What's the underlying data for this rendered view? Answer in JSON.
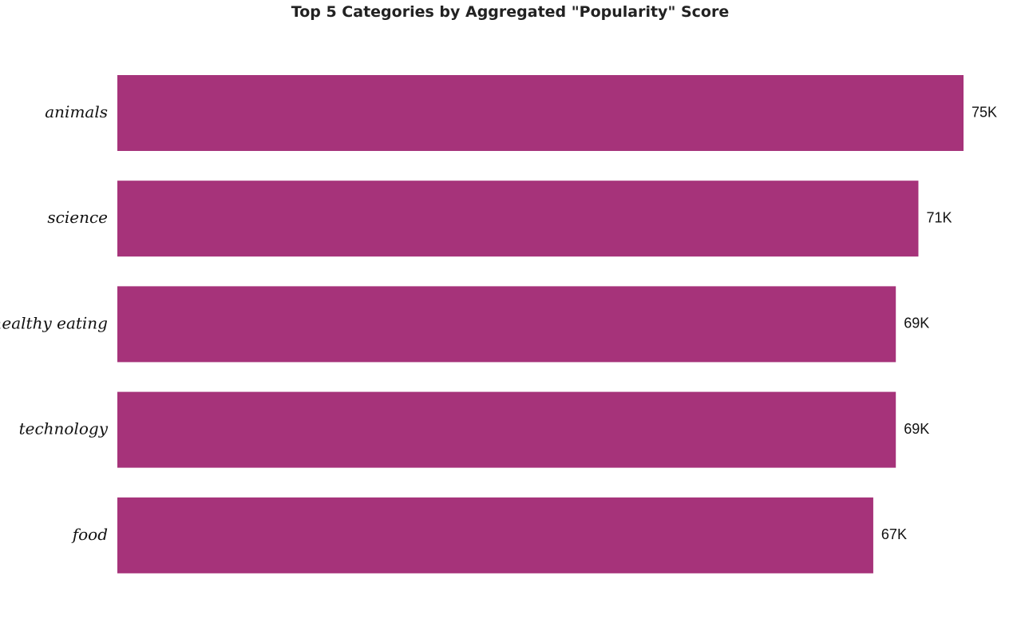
{
  "chart_data": {
    "type": "bar",
    "orientation": "horizontal",
    "title": "Top 5 Categories by Aggregated \"Popularity\" Score",
    "categories": [
      "animals",
      "science",
      "healthy eating",
      "technology",
      "food"
    ],
    "values": [
      75000,
      71000,
      69000,
      69000,
      67000
    ],
    "data_labels": [
      "75K",
      "71K",
      "69K",
      "69K",
      "67K"
    ],
    "bar_color": "#a6337a",
    "xlim": [
      0,
      75000
    ],
    "grid": false,
    "legend": "none",
    "axes_visible": false
  }
}
